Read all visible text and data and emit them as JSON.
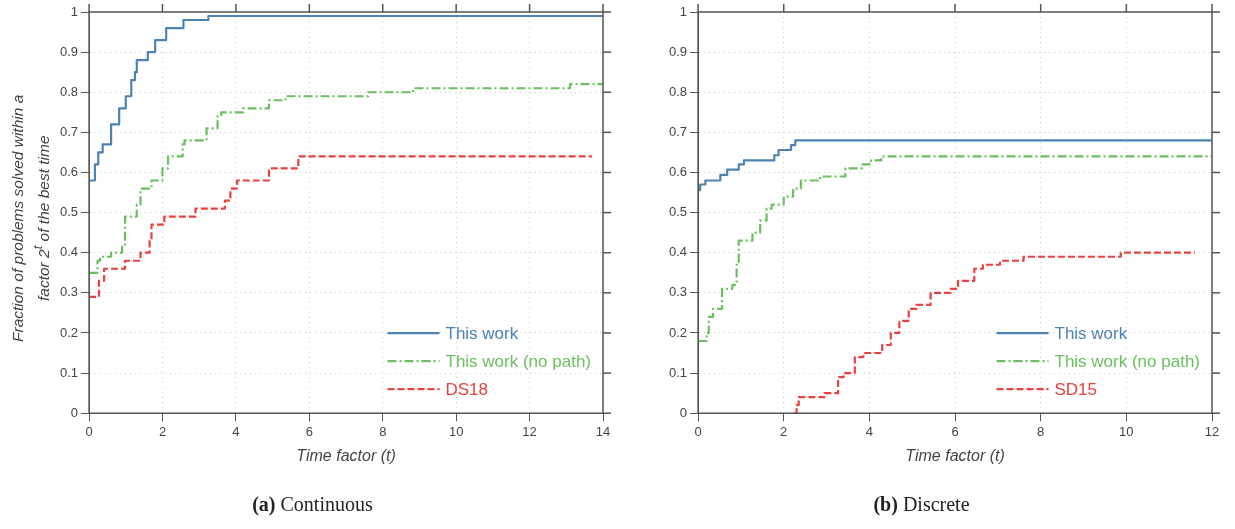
{
  "chart_data": [
    {
      "type": "step",
      "title": "(a) Continuous",
      "xlabel": "Time factor (t)",
      "ylabel": "Fraction of problems solved within a factor 2$^{t}$ of the best time",
      "xlim": [
        0,
        14
      ],
      "ylim": [
        0,
        1
      ],
      "xticks": [
        0,
        2,
        4,
        6,
        8,
        10,
        12,
        14
      ],
      "yticks": [
        0,
        0.1,
        0.2,
        0.3,
        0.4,
        0.5,
        0.6,
        0.7,
        0.8,
        0.9,
        1
      ],
      "grid": true,
      "legend": "bottom right",
      "series": [
        {
          "name": "This work",
          "color": "#4e81b4",
          "line_style": "solid",
          "x": [
            0,
            0.16,
            0.25,
            0.37,
            0.6,
            0.82,
            1.0,
            1.15,
            1.25,
            1.3,
            1.6,
            1.8,
            2.1,
            2.57,
            3.25,
            14
          ],
          "values": [
            0.58,
            0.62,
            0.65,
            0.67,
            0.72,
            0.76,
            0.79,
            0.83,
            0.85,
            0.88,
            0.9,
            0.93,
            0.96,
            0.98,
            0.99,
            0.99
          ]
        },
        {
          "name": "This work (no path)",
          "color": "#6abf5e",
          "line_style": "dashdot",
          "x": [
            0,
            0.23,
            0.3,
            0.6,
            0.9,
            0.98,
            1.3,
            1.4,
            1.7,
            2.0,
            2.15,
            2.55,
            2.6,
            3.2,
            3.5,
            3.6,
            4.2,
            4.9,
            5.35,
            7.6,
            8.83,
            13.1,
            14
          ],
          "values": [
            0.35,
            0.38,
            0.39,
            0.4,
            0.42,
            0.49,
            0.52,
            0.56,
            0.58,
            0.61,
            0.64,
            0.67,
            0.68,
            0.71,
            0.74,
            0.75,
            0.76,
            0.78,
            0.79,
            0.8,
            0.81,
            0.82,
            0.82
          ]
        },
        {
          "name": "DS18",
          "color": "#e8413f",
          "line_style": "dashed",
          "x": [
            0,
            0.27,
            0.41,
            0.98,
            1.4,
            1.65,
            1.7,
            2.05,
            2.9,
            3.7,
            3.85,
            4.03,
            4.9,
            5.7,
            13.7
          ],
          "values": [
            0.29,
            0.33,
            0.36,
            0.38,
            0.4,
            0.43,
            0.47,
            0.49,
            0.51,
            0.53,
            0.56,
            0.58,
            0.61,
            0.64,
            0.64
          ]
        }
      ]
    },
    {
      "type": "step",
      "title": "(b) Discrete",
      "xlabel": "Time factor (t)",
      "xlim": [
        0,
        12
      ],
      "ylim": [
        0,
        1
      ],
      "xticks": [
        0,
        2,
        4,
        6,
        8,
        10,
        12
      ],
      "yticks": [
        0,
        0.1,
        0.2,
        0.3,
        0.4,
        0.5,
        0.6,
        0.7,
        0.8,
        0.9,
        1
      ],
      "grid": true,
      "legend": "bottom right",
      "series": [
        {
          "name": "This work",
          "color": "#4e81b4",
          "line_style": "solid",
          "x": [
            0,
            0.05,
            0.17,
            0.52,
            0.68,
            0.95,
            1.07,
            1.78,
            1.88,
            2.17,
            2.27,
            12
          ],
          "values": [
            0.556,
            0.57,
            0.58,
            0.594,
            0.607,
            0.62,
            0.63,
            0.643,
            0.656,
            0.668,
            0.68,
            0.68
          ]
        },
        {
          "name": "This work (no path)",
          "color": "#6abf5e",
          "line_style": "dashdot",
          "x": [
            0,
            0.2,
            0.25,
            0.35,
            0.56,
            0.8,
            0.9,
            0.95,
            1.27,
            1.45,
            1.6,
            1.72,
            2.0,
            2.22,
            2.4,
            2.85,
            3.44,
            3.84,
            4.04,
            4.28,
            12
          ],
          "values": [
            0.18,
            0.2,
            0.24,
            0.26,
            0.31,
            0.32,
            0.37,
            0.43,
            0.45,
            0.48,
            0.51,
            0.52,
            0.54,
            0.56,
            0.58,
            0.59,
            0.61,
            0.62,
            0.63,
            0.64,
            0.64
          ]
        },
        {
          "name": "SD15",
          "color": "#e8413f",
          "line_style": "dashed",
          "x": [
            2.25,
            2.3,
            2.35,
            2.95,
            3.27,
            3.4,
            3.66,
            3.86,
            4.3,
            4.5,
            4.7,
            4.92,
            5.1,
            5.43,
            5.9,
            6.07,
            6.45,
            6.65,
            7.05,
            7.6,
            9.87,
            11.6
          ],
          "values": [
            0,
            0.02,
            0.04,
            0.05,
            0.09,
            0.1,
            0.14,
            0.15,
            0.17,
            0.2,
            0.23,
            0.26,
            0.27,
            0.3,
            0.31,
            0.33,
            0.36,
            0.37,
            0.38,
            0.39,
            0.4,
            0.4
          ]
        }
      ]
    }
  ]
}
